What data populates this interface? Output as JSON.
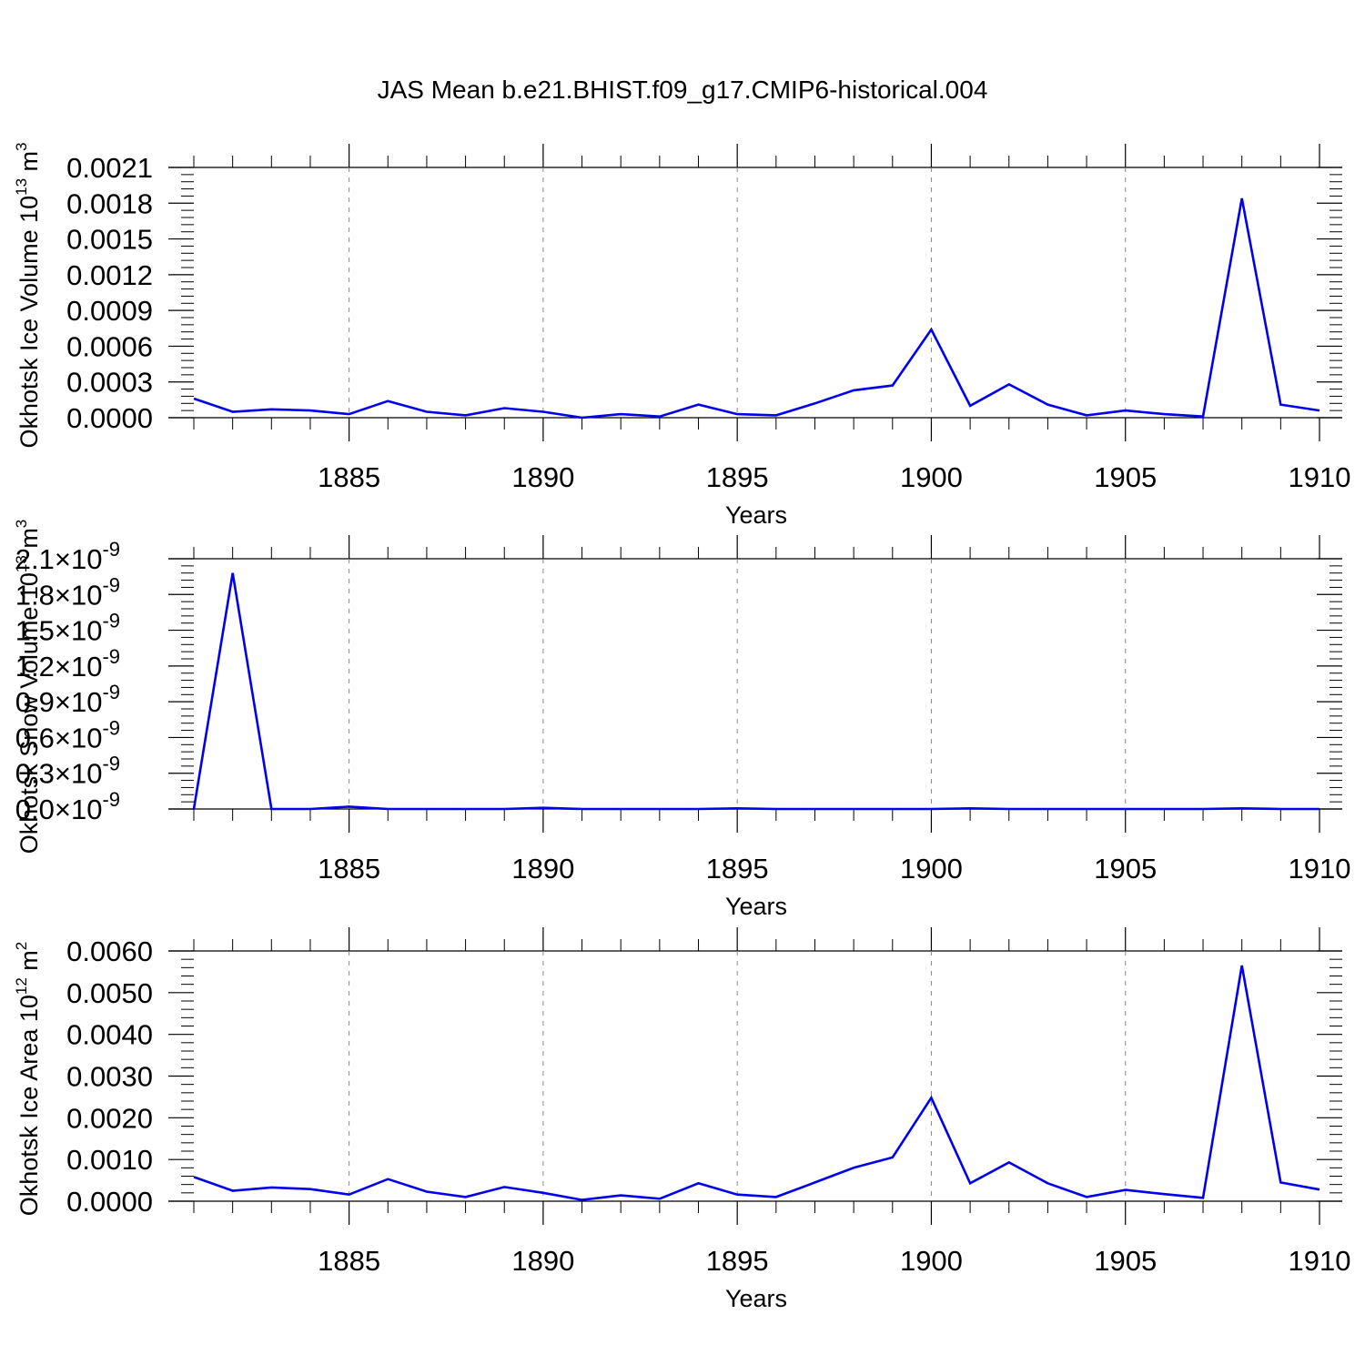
{
  "title": "JAS Mean b.e21.BHIST.f09_g17.CMIP6-historical.004",
  "colors": {
    "series": "#0000ee",
    "axis": "#000000",
    "grid": "#888888"
  },
  "chart_data": [
    {
      "type": "line",
      "title": "JAS Mean b.e21.BHIST.f09_g17.CMIP6-historical.004",
      "ylabel": {
        "text": "Okhotsk Ice Volume 10",
        "exp": "13",
        "unit": "m",
        "unit_exp": "3"
      },
      "xlabel": "Years",
      "xlim": [
        1881,
        1910
      ],
      "ylim": [
        0,
        0.0021
      ],
      "x_ticks": [
        1885,
        1890,
        1895,
        1900,
        1905,
        1910
      ],
      "y_ticks": [
        "0.0000",
        "0.0003",
        "0.0006",
        "0.0009",
        "0.0012",
        "0.0015",
        "0.0018",
        "0.0021"
      ],
      "x": [
        1881,
        1882,
        1883,
        1884,
        1885,
        1886,
        1887,
        1888,
        1889,
        1890,
        1891,
        1892,
        1893,
        1894,
        1895,
        1896,
        1897,
        1898,
        1899,
        1900,
        1901,
        1902,
        1903,
        1904,
        1905,
        1906,
        1907,
        1908,
        1909,
        1910
      ],
      "values": [
        0.00016,
        5e-05,
        7e-05,
        6e-05,
        3e-05,
        0.00014,
        5e-05,
        2e-05,
        8e-05,
        5e-05,
        0.0,
        3e-05,
        1e-05,
        0.00011,
        3e-05,
        2e-05,
        0.00012,
        0.00023,
        0.00027,
        0.00074,
        0.0001,
        0.00028,
        0.00011,
        2e-05,
        6e-05,
        3e-05,
        1e-05,
        0.00184,
        0.00011,
        6e-05
      ],
      "grid": "vertical dashed at major x ticks"
    },
    {
      "type": "line",
      "ylabel": {
        "text": "Okhotsk Snow Volume 10",
        "exp": "13",
        "unit": "m",
        "unit_exp": "3"
      },
      "xlabel": "Years",
      "xlim": [
        1881,
        1910
      ],
      "ylim": [
        0,
        2.1e-09
      ],
      "x_ticks": [
        1885,
        1890,
        1895,
        1900,
        1905,
        1910
      ],
      "y_ticks": [
        "0.0",
        "0.3",
        "0.6",
        "0.9",
        "1.2",
        "1.5",
        "1.8",
        "2.1"
      ],
      "y_tick_suffix": "×10",
      "y_tick_exp": "-9",
      "x": [
        1881,
        1882,
        1883,
        1884,
        1885,
        1886,
        1887,
        1888,
        1889,
        1890,
        1891,
        1892,
        1893,
        1894,
        1895,
        1896,
        1897,
        1898,
        1899,
        1900,
        1901,
        1902,
        1903,
        1904,
        1905,
        1906,
        1907,
        1908,
        1909,
        1910
      ],
      "values": [
        0,
        1.98e-09,
        0,
        0,
        2e-11,
        0,
        0,
        0,
        0,
        1e-11,
        0,
        0,
        0,
        0,
        5e-12,
        0,
        0,
        0,
        0,
        0,
        5e-12,
        0,
        0,
        0,
        0,
        0,
        0,
        5e-12,
        0,
        0
      ],
      "grid": "vertical dashed at major x ticks"
    },
    {
      "type": "line",
      "ylabel": {
        "text": "Okhotsk Ice Area 10",
        "exp": "12",
        "unit": "m",
        "unit_exp": "2"
      },
      "xlabel": "Years",
      "xlim": [
        1881,
        1910
      ],
      "ylim": [
        0,
        0.006
      ],
      "x_ticks": [
        1885,
        1890,
        1895,
        1900,
        1905,
        1910
      ],
      "y_ticks": [
        "0.0000",
        "0.0010",
        "0.0020",
        "0.0030",
        "0.0040",
        "0.0050",
        "0.0060"
      ],
      "x": [
        1881,
        1882,
        1883,
        1884,
        1885,
        1886,
        1887,
        1888,
        1889,
        1890,
        1891,
        1892,
        1893,
        1894,
        1895,
        1896,
        1897,
        1898,
        1899,
        1900,
        1901,
        1902,
        1903,
        1904,
        1905,
        1906,
        1907,
        1908,
        1909,
        1910
      ],
      "values": [
        0.00058,
        0.00025,
        0.00033,
        0.00029,
        0.00016,
        0.00053,
        0.00023,
        0.0001,
        0.00034,
        0.0002,
        3e-05,
        0.00014,
        6e-05,
        0.00043,
        0.00016,
        0.0001,
        0.00045,
        0.0008,
        0.00105,
        0.00248,
        0.00043,
        0.00093,
        0.00043,
        0.0001,
        0.00027,
        0.00017,
        8e-05,
        0.00565,
        0.00045,
        0.00028
      ],
      "grid": "vertical dashed at major x ticks"
    }
  ]
}
